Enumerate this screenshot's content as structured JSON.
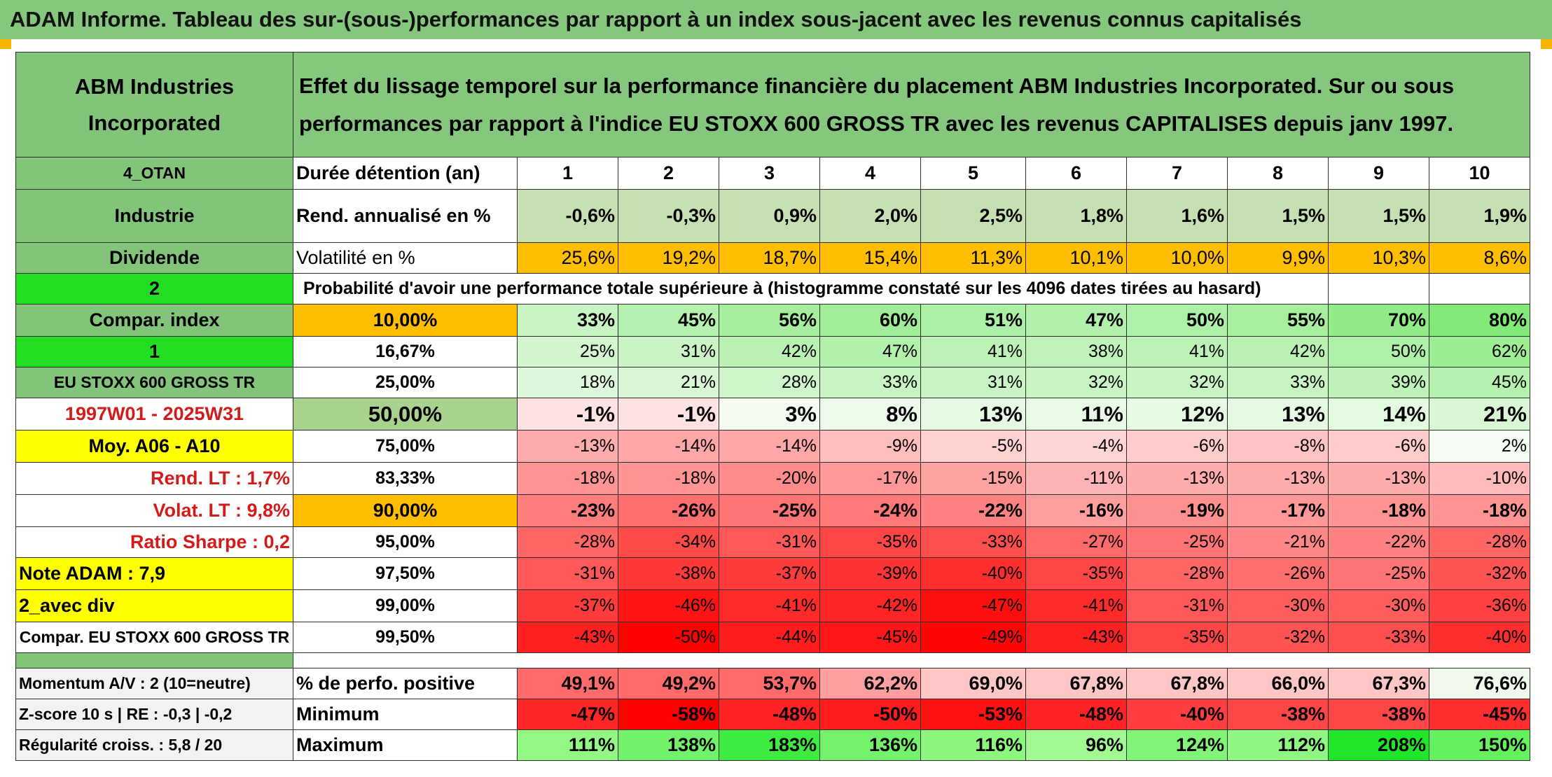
{
  "header": {
    "title": "ADAM Informe. Tableau des sur-(sous-)performances par rapport à un index sous-jacent avec les revenus connus capitalisés"
  },
  "sidebar": {
    "company": "ABM Industries Incorporated",
    "code": "4_OTAN",
    "sector": "Industrie",
    "dividend_label": "Dividende",
    "dividend_value": "2",
    "compar_index_label": "Compar. index",
    "compar_index_value": "1",
    "index_name": "EU STOXX 600 GROSS TR",
    "period": "1997W01 - 2025W31",
    "moy": "Moy. A06 - A10",
    "rend_lt": "Rend. LT :   1,7%",
    "volat_lt": "Volat. LT :   9,8%",
    "sharpe": "Ratio Sharpe :    0,2",
    "note": "Note ADAM : 7,9",
    "avec_div": "2_avec div",
    "compar_full": "Compar. EU STOXX 600 GROSS TR",
    "momentum": "Momentum A/V : 2 (10=neutre)",
    "zscore": "Z-score 10 s | RE : -0,3 | -0,2",
    "regularite": "Régularité croiss. : 5,8 / 20"
  },
  "description": "Effet du lissage temporel sur la performance financière du placement ABM Industries Incorporated. Sur ou sous performances par rapport à l'indice EU STOXX 600 GROSS TR avec les revenus CAPITALISES depuis janv 1997.",
  "labels": {
    "duree": "Durée détention (an)",
    "rend": "Rend. annualisé en %",
    "volat": "Volatilité en %",
    "proba": "Probabilité d'avoir une performance totale supérieure à (histogramme constaté sur les 4096 dates tirées au hasard)",
    "pct_positive": "% de perfo. positive",
    "minimum": "Minimum",
    "maximum": "Maximum"
  },
  "years": [
    "1",
    "2",
    "3",
    "4",
    "5",
    "6",
    "7",
    "8",
    "9",
    "10"
  ],
  "rend": [
    "-0,6%",
    "-0,3%",
    "0,9%",
    "2,0%",
    "2,5%",
    "1,8%",
    "1,6%",
    "1,5%",
    "1,5%",
    "1,9%"
  ],
  "volat": [
    "25,6%",
    "19,2%",
    "18,7%",
    "15,4%",
    "11,3%",
    "10,1%",
    "10,0%",
    "9,9%",
    "10,3%",
    "8,6%"
  ],
  "percentile_rows": [
    {
      "p": "10,00%",
      "vals": [
        "33%",
        "45%",
        "56%",
        "60%",
        "51%",
        "47%",
        "50%",
        "55%",
        "70%",
        "80%"
      ]
    },
    {
      "p": "16,67%",
      "vals": [
        "25%",
        "31%",
        "42%",
        "47%",
        "41%",
        "38%",
        "41%",
        "42%",
        "50%",
        "62%"
      ]
    },
    {
      "p": "25,00%",
      "vals": [
        "18%",
        "21%",
        "28%",
        "33%",
        "31%",
        "32%",
        "32%",
        "33%",
        "39%",
        "45%"
      ]
    },
    {
      "p": "50,00%",
      "vals": [
        "-1%",
        "-1%",
        "3%",
        "8%",
        "13%",
        "11%",
        "12%",
        "13%",
        "14%",
        "21%"
      ]
    },
    {
      "p": "75,00%",
      "vals": [
        "-13%",
        "-14%",
        "-14%",
        "-9%",
        "-5%",
        "-4%",
        "-6%",
        "-8%",
        "-6%",
        "2%"
      ]
    },
    {
      "p": "83,33%",
      "vals": [
        "-18%",
        "-18%",
        "-20%",
        "-17%",
        "-15%",
        "-11%",
        "-13%",
        "-13%",
        "-13%",
        "-10%"
      ]
    },
    {
      "p": "90,00%",
      "vals": [
        "-23%",
        "-26%",
        "-25%",
        "-24%",
        "-22%",
        "-16%",
        "-19%",
        "-17%",
        "-18%",
        "-18%"
      ]
    },
    {
      "p": "95,00%",
      "vals": [
        "-28%",
        "-34%",
        "-31%",
        "-35%",
        "-33%",
        "-27%",
        "-25%",
        "-21%",
        "-22%",
        "-28%"
      ]
    },
    {
      "p": "97,50%",
      "vals": [
        "-31%",
        "-38%",
        "-37%",
        "-39%",
        "-40%",
        "-35%",
        "-28%",
        "-26%",
        "-25%",
        "-32%"
      ]
    },
    {
      "p": "99,00%",
      "vals": [
        "-37%",
        "-46%",
        "-41%",
        "-42%",
        "-47%",
        "-41%",
        "-31%",
        "-30%",
        "-30%",
        "-36%"
      ]
    },
    {
      "p": "99,50%",
      "vals": [
        "-43%",
        "-50%",
        "-44%",
        "-45%",
        "-49%",
        "-43%",
        "-35%",
        "-32%",
        "-33%",
        "-40%"
      ]
    }
  ],
  "pct_positive": [
    "49,1%",
    "49,2%",
    "53,7%",
    "62,2%",
    "69,0%",
    "67,8%",
    "67,8%",
    "66,0%",
    "67,3%",
    "76,6%"
  ],
  "minimum": [
    "-47%",
    "-58%",
    "-48%",
    "-50%",
    "-53%",
    "-48%",
    "-40%",
    "-38%",
    "-38%",
    "-45%"
  ],
  "maximum": [
    "111%",
    "138%",
    "183%",
    "136%",
    "116%",
    "96%",
    "124%",
    "112%",
    "208%",
    "150%"
  ],
  "colors": {
    "header_green": "#85c77c",
    "bright_green": "#22dd22",
    "yellow": "#ffff00",
    "orange": "#ffbf00",
    "red": "#ff0000"
  }
}
